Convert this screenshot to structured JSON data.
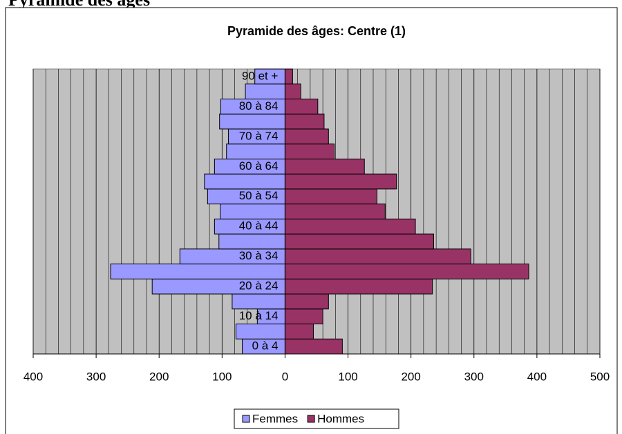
{
  "header": {
    "title": "Pyramide des âges"
  },
  "chart_data": {
    "type": "pyramid",
    "title": "Pyramide des âges: Centre (1)",
    "categories": [
      "0 à 4",
      null,
      "10 à 14",
      null,
      "20 à 24",
      null,
      "30 à 34",
      null,
      "40 à 44",
      null,
      "50 à 54",
      null,
      "60 à 64",
      null,
      "70 à 74",
      null,
      "80 à 84",
      null,
      "90 et +"
    ],
    "series": [
      {
        "name": "Femmes",
        "color": "#9999ff",
        "values": [
          -68,
          -78,
          -44,
          -84,
          -211,
          -277,
          -167,
          -105,
          -112,
          -103,
          -123,
          -128,
          -112,
          -93,
          -90,
          -104,
          -102,
          -63,
          -48
        ]
      },
      {
        "name": "Hommes",
        "color": "#993366",
        "values": [
          91,
          45,
          60,
          69,
          234,
          387,
          295,
          236,
          207,
          159,
          146,
          177,
          126,
          78,
          69,
          62,
          52,
          25,
          12
        ]
      }
    ],
    "xlim": [
      -400,
      500
    ],
    "xticks": [
      {
        "value": -400,
        "label": "400"
      },
      {
        "value": -300,
        "label": "300"
      },
      {
        "value": -200,
        "label": "200"
      },
      {
        "value": -100,
        "label": "100"
      },
      0,
      100,
      200,
      300,
      400,
      500
    ],
    "grid": true,
    "legend": "bottom"
  }
}
